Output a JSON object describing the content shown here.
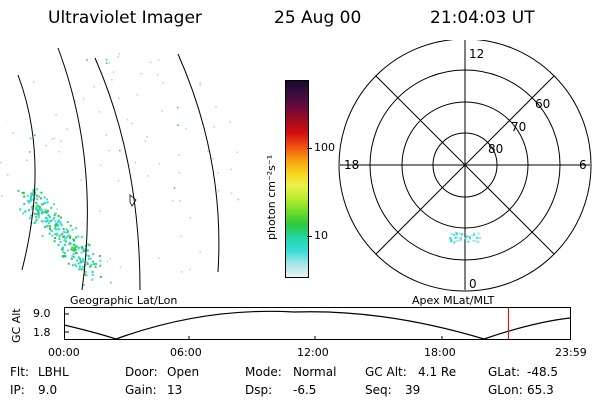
{
  "header": {
    "instrument": "Ultraviolet Imager",
    "date": "25 Aug 00",
    "time": "21:04:03 UT"
  },
  "colorbar": {
    "unit_label": "photon cm⁻²s⁻¹",
    "ticks": [
      "100",
      "10"
    ],
    "colors": [
      "#1a0a2e",
      "#3b0d3f",
      "#6a0a3a",
      "#a00a20",
      "#d21010",
      "#ef5010",
      "#f59a10",
      "#f7d21a",
      "#eef04a",
      "#b8ec30",
      "#6edc2a",
      "#2ec83a",
      "#24d6a8",
      "#38dcd8",
      "#a7e6e6",
      "#e8f0f0"
    ]
  },
  "left_panel": {
    "label": "Geographic Lat/Lon"
  },
  "polar_panel": {
    "label": "Apex MLat/MLT",
    "mlt_labels": {
      "top": "12",
      "left": "18",
      "right": "6",
      "bottom": "0"
    },
    "lat_labels": [
      "60",
      "70",
      "80"
    ]
  },
  "altitude_plot": {
    "ylabel": "GC Alt",
    "ytick_top": "9.0",
    "ytick_bottom": "1.8",
    "xticks": [
      "00:00",
      "06:00",
      "12:00",
      "18:00",
      "23:59"
    ],
    "marker_time": "21:04",
    "marker_color": "#cc2020"
  },
  "status": {
    "flt_label": "Flt:",
    "flt_value": "LBHL",
    "ip_label": "IP:",
    "ip_value": "9.0",
    "door_label": "Door:",
    "door_value": "Open",
    "gain_label": "Gain:",
    "gain_value": "13",
    "mode_label": "Mode:",
    "mode_value": "Normal",
    "dsp_label": "Dsp:",
    "dsp_value": "-6.5",
    "gcalt_label": "GC Alt:",
    "gcalt_value": "4.1 Re",
    "seq_label": "Seq:",
    "seq_value": "39",
    "glat_label": "GLat:",
    "glat_value": "-48.5",
    "glon_label": "GLon:",
    "glon_value": "65.3"
  }
}
